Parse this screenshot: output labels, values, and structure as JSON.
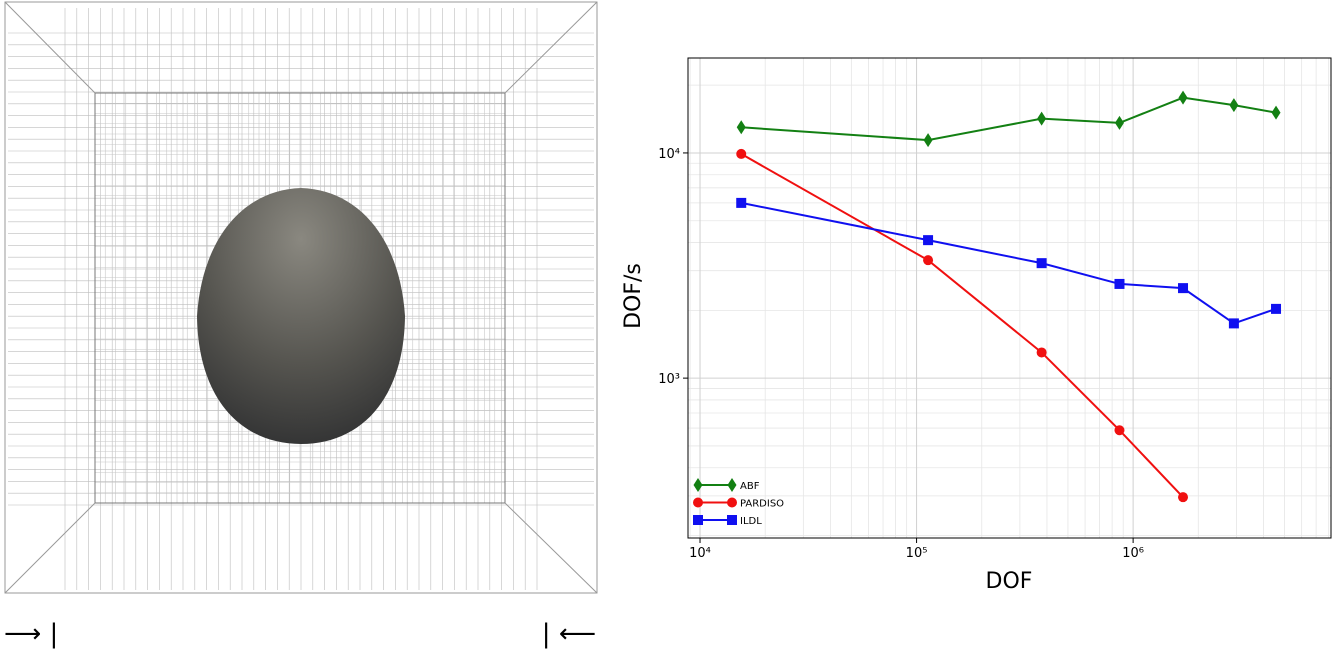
{
  "left_panel": {
    "markers": [
      "⟶ |",
      "| ⟵"
    ]
  },
  "chart_data": {
    "type": "line",
    "xlabel": "DOF",
    "ylabel": "DOF/s",
    "xscale": "log",
    "yscale": "log",
    "grid": true,
    "legend": "lower left",
    "xlim": [
      8800,
      8200000
    ],
    "ylim": [
      195,
      26400
    ],
    "xticks": [
      {
        "value": 10000,
        "label": "10⁴"
      },
      {
        "value": 100000,
        "label": "10⁵"
      },
      {
        "value": 1000000,
        "label": "10⁶"
      }
    ],
    "yticks": [
      {
        "value": 1000,
        "label": "10³"
      },
      {
        "value": 10000,
        "label": "10⁴"
      }
    ],
    "xminor": [
      9000,
      20000,
      30000,
      40000,
      50000,
      60000,
      70000,
      80000,
      90000,
      200000,
      300000,
      400000,
      500000,
      600000,
      700000,
      800000,
      900000,
      2000000,
      3000000,
      4000000,
      5000000,
      6000000,
      7000000,
      8000000
    ],
    "yminor": [
      200,
      300,
      400,
      500,
      600,
      700,
      800,
      900,
      2000,
      3000,
      4000,
      5000,
      6000,
      7000,
      8000,
      9000,
      20000
    ],
    "series": [
      {
        "name": "ABF",
        "color": "#138013",
        "marker": "diamond",
        "x": [
          15500,
          113000,
          378000,
          865000,
          1700000,
          2920000,
          4570000
        ],
        "values": [
          13000,
          11400,
          14200,
          13600,
          17600,
          16300,
          15100
        ]
      },
      {
        "name": "PARDISO",
        "color": "#f01010",
        "marker": "circle",
        "x": [
          15500,
          113000,
          378000,
          865000,
          1700000
        ],
        "values": [
          9900,
          3340,
          1300,
          587,
          296
        ]
      },
      {
        "name": "ILDL",
        "color": "#1010f0",
        "marker": "square",
        "x": [
          15500,
          113000,
          378000,
          865000,
          1700000,
          2920000,
          4570000
        ],
        "values": [
          6000,
          4100,
          3240,
          2620,
          2510,
          1750,
          2030
        ]
      }
    ]
  }
}
